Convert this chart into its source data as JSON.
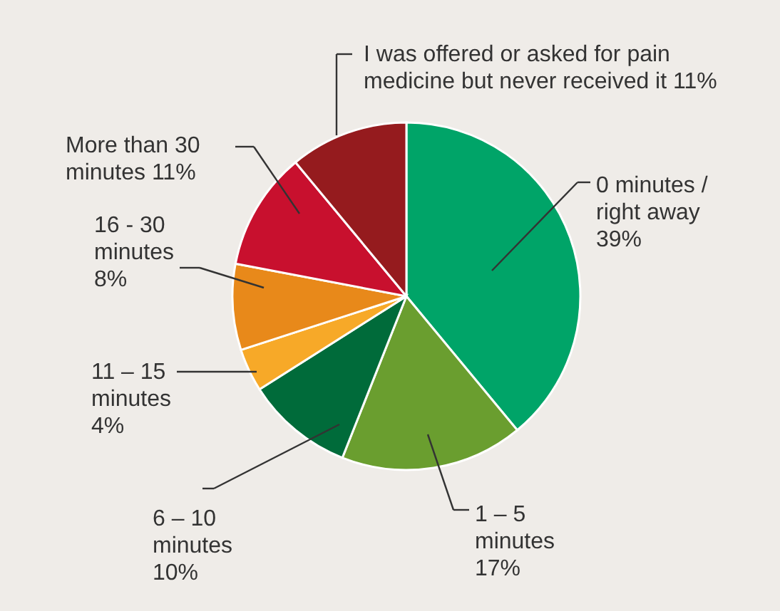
{
  "chart_data": {
    "type": "pie",
    "categories": [
      "0 minutes / right away",
      "1 – 5 minutes",
      "6 – 10 minutes",
      "11 – 15 minutes",
      "16 - 30 minutes",
      "More than 30 minutes",
      "I was offered or asked for pain medicine but never received it"
    ],
    "values": [
      39,
      17,
      10,
      4,
      8,
      11,
      11
    ],
    "value_labels": [
      "39%",
      "17%",
      "10%",
      "4%",
      "8%",
      "11%",
      "11%"
    ],
    "colors": [
      "#00a468",
      "#6a9e2f",
      "#006b3a",
      "#f7a928",
      "#e8891a",
      "#c8102e",
      "#951b1e"
    ]
  }
}
